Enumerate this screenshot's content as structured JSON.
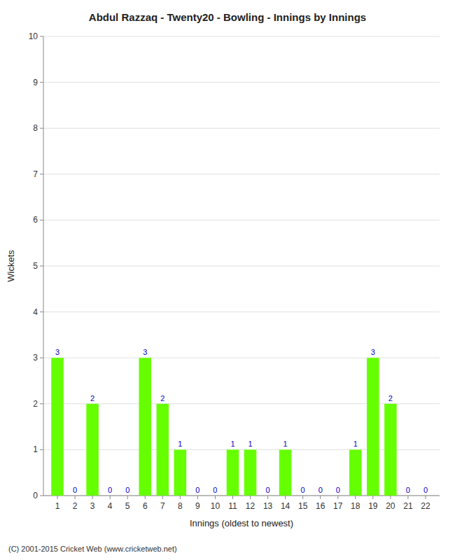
{
  "chart_data": {
    "type": "bar",
    "title": "Abdul Razzaq - Twenty20 - Bowling - Innings by Innings",
    "xlabel": "Innings (oldest to newest)",
    "ylabel": "Wickets",
    "annotations": [
      "(C) 2001-2015 Cricket Web (www.cricketweb.net)"
    ],
    "x": [
      1,
      2,
      3,
      4,
      5,
      6,
      7,
      8,
      9,
      10,
      11,
      12,
      13,
      14,
      15,
      16,
      17,
      18,
      19,
      20,
      21,
      22
    ],
    "values": [
      3,
      0,
      2,
      0,
      0,
      3,
      2,
      1,
      0,
      0,
      1,
      1,
      0,
      1,
      0,
      0,
      0,
      1,
      3,
      2,
      0,
      0
    ],
    "color": "#66ff00",
    "xlim": [
      0.2,
      22.8
    ],
    "xticks": [
      1,
      2,
      3,
      4,
      5,
      6,
      7,
      8,
      9,
      10,
      11,
      12,
      13,
      14,
      15,
      16,
      17,
      18,
      19,
      20,
      21,
      22
    ],
    "ylim": [
      0,
      10
    ],
    "yticks": [
      0,
      1,
      2,
      3,
      4,
      5,
      6,
      7,
      8,
      9,
      10
    ],
    "grid": true,
    "data_labels": true
  }
}
